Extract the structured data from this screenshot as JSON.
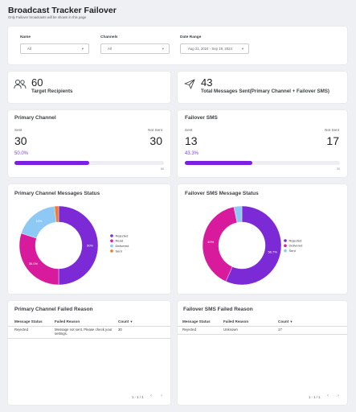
{
  "header": {
    "title": "Broadcast Tracker Failover",
    "subtitle": "Only Failover broadcasts will be shown in this page"
  },
  "filters": {
    "name": {
      "label": "Name",
      "value": "All"
    },
    "channels": {
      "label": "Channels",
      "value": "All"
    },
    "date_range": {
      "label": "Date Range",
      "value": "Aug 21, 2024 - Sep 19, 2024"
    }
  },
  "kpis": {
    "target": {
      "value": "60",
      "label": "Target Recipients",
      "icon": "people-icon"
    },
    "sent": {
      "value": "43",
      "label": "Total Messages Sent(Primary Channel + Failover SMS)",
      "icon": "send-icon"
    }
  },
  "primary_channel": {
    "title": "Primary Channel",
    "sent_label": "Sent",
    "not_sent_label": "Not Sent",
    "sent_value": "30",
    "not_sent_value": "30",
    "percent": "50.0%",
    "progress_fraction": 0.5,
    "tick_start": "0",
    "tick_end": "60"
  },
  "failover_sms": {
    "title": "Failover SMS",
    "sent_label": "Sent",
    "not_sent_label": "Not Sent",
    "sent_value": "13",
    "not_sent_value": "17",
    "percent": "43.3%",
    "progress_fraction": 0.433,
    "tick_start": "0",
    "tick_end": "30"
  },
  "chart_data": [
    {
      "type": "pie",
      "title": "Primary Channel Messages Status",
      "categories": [
        "Rejected",
        "Read",
        "Delivered",
        "Sent"
      ],
      "values": [
        50,
        30,
        18.3,
        1.7
      ],
      "labels": [
        "50%",
        "30.0%",
        "18%",
        ""
      ],
      "colors": [
        "#7b2ad6",
        "#d81b9c",
        "#8ec9f5",
        "#f07c2a"
      ],
      "legend": "right"
    },
    {
      "type": "pie",
      "title": "Failover SMS Message Status",
      "categories": [
        "Rejected",
        "Delivered",
        "Sent"
      ],
      "values": [
        56.7,
        40,
        3.3
      ],
      "labels": [
        "56.7%",
        "40%",
        ""
      ],
      "colors": [
        "#7b2ad6",
        "#d81b9c",
        "#8ec9f5"
      ],
      "legend": "right"
    }
  ],
  "primary_failed": {
    "title": "Primary Channel Failed Reason",
    "columns": [
      "Message Status",
      "Failed Reason",
      "Count"
    ],
    "sort_icon": "sort-down-icon",
    "rows": [
      {
        "status": "Rejected",
        "reason": "Message not sent. Please check your settings.",
        "count": "30"
      }
    ],
    "pagination": "1 - 1 / 1"
  },
  "failover_failed": {
    "title": "Failover SMS Failed Reason",
    "columns": [
      "Message Status",
      "Failed Reason",
      "Count"
    ],
    "sort_icon": "sort-down-icon",
    "rows": [
      {
        "status": "Rejected",
        "reason": "Unknown",
        "count": "17"
      }
    ],
    "pagination": "1 - 1 / 1"
  }
}
